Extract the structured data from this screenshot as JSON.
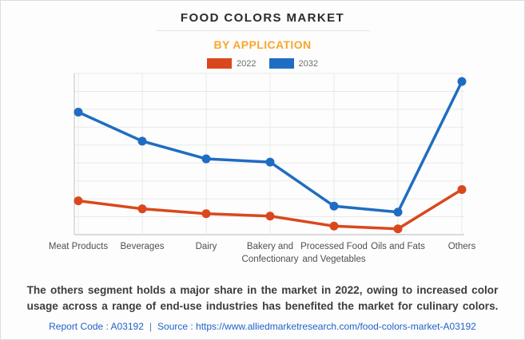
{
  "header": {
    "title": "FOOD COLORS MARKET",
    "subtitle": "BY APPLICATION"
  },
  "legend": [
    {
      "label": "2022",
      "color": "#d9481d"
    },
    {
      "label": "2032",
      "color": "#1f6dc1"
    }
  ],
  "chart_data": {
    "type": "line",
    "title": "FOOD COLORS MARKET",
    "subtitle": "BY APPLICATION",
    "categories": [
      "Meat Products",
      "Beverages",
      "Dairy",
      "Bakery and Confectionary",
      "Processed Food and Vegetables",
      "Oils and Fats",
      "Others"
    ],
    "category_label_lines": [
      [
        "Meat Products"
      ],
      [
        "Beverages"
      ],
      [
        "Dairy"
      ],
      [
        "Bakery and",
        "Confectionary"
      ],
      [
        "Processed Food",
        "and Vegetables"
      ],
      [
        "Oils and Fats"
      ],
      [
        "Others"
      ]
    ],
    "series": [
      {
        "name": "2022",
        "color": "#d9481d",
        "values": [
          21,
          16,
          13,
          11.5,
          5.3,
          3.6,
          28
        ]
      },
      {
        "name": "2032",
        "color": "#1f6dc1",
        "values": [
          76,
          58,
          47,
          45,
          17.7,
          14,
          95
        ]
      }
    ],
    "xlabel": "",
    "ylabel": "",
    "ylim": [
      0,
      100
    ],
    "y_axis_tick_labels_visible": false,
    "grid": true,
    "legend_position": "top",
    "grid_color": "#e9e9e9",
    "axis_color": "#c2c2c2",
    "label_color": "#4f4f4f"
  },
  "footer": {
    "description": "The others segment holds a major share in the market in 2022, owing to increased color usage across a range of end-use industries has benefited the market for culinary colors.",
    "report_code": "Report Code : A03192",
    "separator": "|",
    "source": "Source : https://www.alliedmarketresearch.com/food-colors-market-A03192"
  }
}
